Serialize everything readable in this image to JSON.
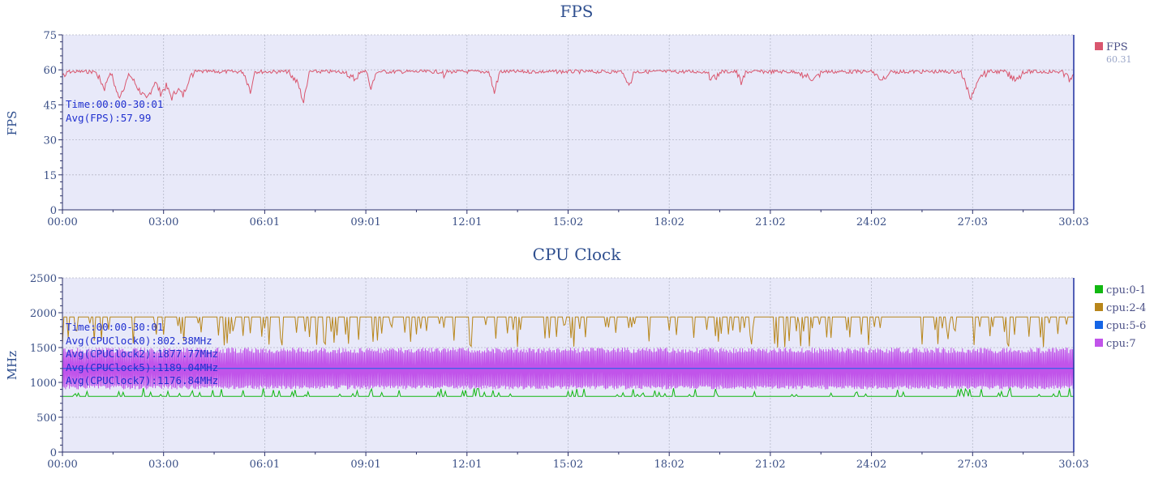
{
  "chart_data": [
    {
      "type": "line",
      "title": "FPS",
      "ylabel": "FPS",
      "ylim": [
        0,
        75
      ],
      "yticks": [
        "0",
        "15",
        "30",
        "45",
        "60",
        "75"
      ],
      "xticks": [
        "00:00",
        "03:00",
        "06:01",
        "09:01",
        "12:01",
        "15:02",
        "18:02",
        "21:02",
        "24:02",
        "27:03",
        "30:03"
      ],
      "xlim_seconds": [
        0,
        1803
      ],
      "annotation": [
        "Time:00:00-30:01",
        "Avg(FPS):57.99"
      ],
      "legend_position": "right",
      "series": [
        {
          "name": "FPS",
          "legend_value": "60.31",
          "color": "#d9566e",
          "x": [
            0,
            30,
            60,
            75,
            85,
            100,
            120,
            135,
            150,
            165,
            175,
            185,
            195,
            205,
            215,
            225,
            240,
            250,
            260,
            280,
            300,
            320,
            335,
            345,
            360,
            400,
            420,
            430,
            440,
            460,
            480,
            500,
            520,
            540,
            550,
            560,
            580,
            600,
            620,
            640,
            660,
            680,
            700,
            720,
            740,
            760,
            770,
            780,
            800,
            840,
            880,
            920,
            960,
            1000,
            1010,
            1020,
            1060,
            1100,
            1140,
            1160,
            1180,
            1200,
            1210,
            1220,
            1260,
            1300,
            1340,
            1360,
            1380,
            1400,
            1440,
            1460,
            1480,
            1500,
            1520,
            1560,
            1600,
            1620,
            1640,
            1680,
            1700,
            1720,
            1740,
            1760,
            1780,
            1795,
            1803
          ],
          "y": [
            58,
            60,
            59,
            52,
            60,
            48,
            58,
            52,
            47,
            55,
            50,
            53,
            48,
            52,
            49,
            56,
            60,
            60,
            60,
            60,
            60,
            60,
            50,
            60,
            60,
            60,
            54,
            46,
            60,
            60,
            60,
            60,
            56,
            60,
            52,
            60,
            60,
            60,
            60,
            60,
            60,
            58,
            60,
            60,
            60,
            60,
            50,
            60,
            60,
            60,
            60,
            60,
            60,
            60,
            52,
            60,
            60,
            60,
            60,
            56,
            60,
            60,
            55,
            60,
            60,
            60,
            56,
            60,
            60,
            60,
            60,
            56,
            60,
            60,
            60,
            60,
            60,
            48,
            58,
            60,
            55,
            60,
            60,
            60,
            60,
            56,
            58
          ]
        }
      ]
    },
    {
      "type": "line",
      "title": "CPU Clock",
      "ylabel": "MHz",
      "ylim": [
        0,
        2500
      ],
      "yticks": [
        "0",
        "500",
        "1000",
        "1500",
        "2000",
        "2500"
      ],
      "xticks": [
        "00:00",
        "03:00",
        "06:01",
        "09:01",
        "12:01",
        "15:02",
        "18:02",
        "21:02",
        "24:02",
        "27:03",
        "30:03"
      ],
      "xlim_seconds": [
        0,
        1803
      ],
      "annotation": [
        "Time:00:00-30:01",
        "Avg(CPUClock0):802.38MHz",
        "Avg(CPUClock2):1877.77MHz",
        "Avg(CPUClock5):1189.04MHz",
        "Avg(CPUClock7):1176.84MHz"
      ],
      "legend_position": "right",
      "series": [
        {
          "name": "cpu:0-1",
          "color": "#12b812",
          "baseline": 800,
          "peak": 900,
          "avg": 802.38
        },
        {
          "name": "cpu:2-4",
          "color": "#b8861a",
          "baseline": 1940,
          "low": 1500,
          "avg": 1877.77
        },
        {
          "name": "cpu:5-6",
          "color": "#1565e6",
          "baseline": 1200,
          "avg": 1189.04
        },
        {
          "name": "cpu:7",
          "color": "#c154ea",
          "low": 900,
          "high": 1500,
          "avg": 1176.84
        }
      ]
    }
  ]
}
